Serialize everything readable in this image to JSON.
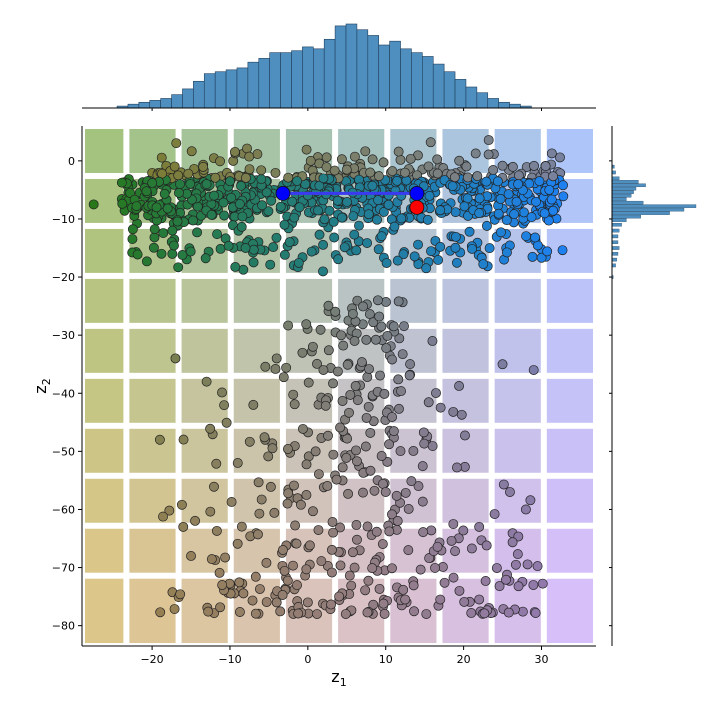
{
  "chart_data": {
    "type": "scatter",
    "title": "",
    "xlabel": "z",
    "xlabel_sub": "1",
    "ylabel": "z",
    "ylabel_sub": "2",
    "xlim": [
      -29,
      37
    ],
    "ylim": [
      -83.5,
      6
    ],
    "xticks": [
      -20,
      -10,
      0,
      10,
      20,
      30
    ],
    "yticks": [
      0,
      -10,
      -20,
      -30,
      -40,
      -50,
      -60,
      -70,
      -80
    ],
    "grid": false,
    "legend": "none",
    "background_grid": {
      "x_edges": [
        -29,
        -23.3,
        -16.6,
        -9.9,
        -3.2,
        3.5,
        10.2,
        16.9,
        23.6,
        30.3,
        37
      ],
      "y_edges": [
        6,
        -2.6,
        -11.2,
        -19.8,
        -28.4,
        -37.0,
        -45.6,
        -54.2,
        -62.8,
        -71.4,
        -83.5
      ],
      "corner_colors": {
        "top_left": "#7fae4a",
        "top_right": "#8fb3ff",
        "bottom_left": "#d2b45a",
        "bottom_right": "#c8a8ff"
      },
      "gap_color": "#ffffff"
    },
    "clusters": [
      {
        "name": "upper_band",
        "x_range": [
          -24,
          33
        ],
        "y_center": -6.5,
        "y_spread": 5.5,
        "count": 900
      },
      {
        "name": "lower_fan",
        "x_range": [
          -19,
          31
        ],
        "y_range": [
          -78,
          -24
        ],
        "count": 420
      }
    ],
    "sample_points": [
      [
        -27.5,
        -7.5
      ],
      [
        -22.0,
        -7.8
      ],
      [
        -18.0,
        -8.2
      ],
      [
        -13.0,
        -4.0
      ],
      [
        -10.0,
        -3.5
      ],
      [
        -8.0,
        -15.0
      ],
      [
        -3.0,
        -11.0
      ],
      [
        2.0,
        -3.0
      ],
      [
        5.0,
        -1.5
      ],
      [
        8.0,
        -2.0
      ],
      [
        12.0,
        -6.0
      ],
      [
        17.0,
        -8.5
      ],
      [
        22.0,
        -9.0
      ],
      [
        27.0,
        -4.0
      ],
      [
        31.0,
        -5.0
      ],
      [
        9.0,
        -24.0
      ],
      [
        6.0,
        -31.0
      ],
      [
        2.0,
        -36.0
      ],
      [
        -4.0,
        -34.0
      ],
      [
        -7.0,
        -42.0
      ],
      [
        -13.0,
        -38.0
      ],
      [
        -17.0,
        -34.0
      ],
      [
        16.0,
        -31.0
      ],
      [
        25.0,
        -35.0
      ],
      [
        29.0,
        -36.0
      ],
      [
        1.0,
        -50.0
      ],
      [
        -9.0,
        -52.0
      ],
      [
        10.0,
        -57.0
      ],
      [
        22.0,
        -63.0
      ],
      [
        -16.0,
        -63.0
      ],
      [
        -11.0,
        -73.0
      ],
      [
        -4.0,
        -76.0
      ],
      [
        0.0,
        -76.0
      ],
      [
        12.5,
        -75.5
      ],
      [
        17.0,
        -75.5
      ],
      [
        22.0,
        -75.5
      ],
      [
        6.0,
        -70.0
      ],
      [
        -15.0,
        -68.0
      ],
      [
        -19.0,
        -48.0
      ],
      [
        28.0,
        -60.0
      ]
    ],
    "connector_line": {
      "from": [
        -3.2,
        -5.6
      ],
      "to": [
        14.0,
        -5.6
      ],
      "color": "#3a3af0"
    },
    "highlight_points": [
      {
        "x": -3.2,
        "y": -5.6,
        "color": "#0000ff"
      },
      {
        "x": 14.0,
        "y": -5.6,
        "color": "#0000ff"
      },
      {
        "x": 14.0,
        "y": -8.0,
        "color": "#ff0000"
      }
    ],
    "marginal_x": {
      "type": "histogram",
      "color": "#4f8fc0",
      "bin_start": -24.5,
      "bin_width": 1.4,
      "counts": [
        2,
        4,
        6,
        8,
        10,
        14,
        20,
        28,
        36,
        38,
        40,
        42,
        48,
        52,
        58,
        58,
        60,
        64,
        62,
        72,
        86,
        88,
        82,
        76,
        66,
        70,
        62,
        58,
        54,
        46,
        38,
        30,
        22,
        16,
        10,
        6,
        4,
        2
      ]
    },
    "marginal_y": {
      "type": "histogram",
      "color": "#4f8fc0",
      "bins": [
        {
          "y": -1,
          "count": 2
        },
        {
          "y": -2,
          "count": 3
        },
        {
          "y": -3,
          "count": 6
        },
        {
          "y": -3.6,
          "count": 22
        },
        {
          "y": -4.2,
          "count": 28
        },
        {
          "y": -4.8,
          "count": 20
        },
        {
          "y": -5.4,
          "count": 18
        },
        {
          "y": -6.0,
          "count": 16
        },
        {
          "y": -6.6,
          "count": 12
        },
        {
          "y": -7.2,
          "count": 26
        },
        {
          "y": -7.8,
          "count": 70
        },
        {
          "y": -8.4,
          "count": 60
        },
        {
          "y": -9.0,
          "count": 48
        },
        {
          "y": -9.6,
          "count": 24
        },
        {
          "y": -10.2,
          "count": 12
        },
        {
          "y": -11.0,
          "count": 8
        },
        {
          "y": -12.0,
          "count": 6
        },
        {
          "y": -13.0,
          "count": 5
        },
        {
          "y": -14.0,
          "count": 5
        },
        {
          "y": -15.0,
          "count": 6
        },
        {
          "y": -16.0,
          "count": 5
        },
        {
          "y": -17.0,
          "count": 4
        },
        {
          "y": -18.0,
          "count": 3
        },
        {
          "y": -20.0,
          "count": 1
        }
      ]
    }
  }
}
